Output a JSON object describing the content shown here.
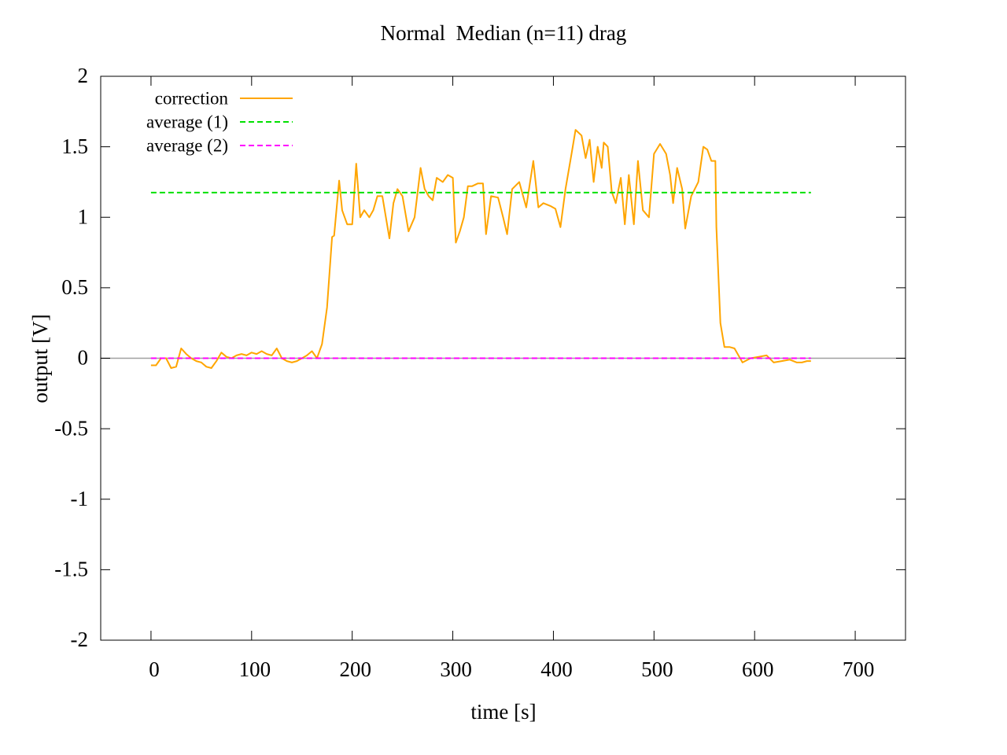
{
  "chart_data": {
    "type": "line",
    "title": "Normal  Median (n=11) drag",
    "xlabel": "time [s]",
    "ylabel": "output [V]",
    "xlim": [
      -50,
      750
    ],
    "xticks": [
      0,
      100,
      200,
      300,
      400,
      500,
      600,
      700
    ],
    "ylim": [
      -2,
      2
    ],
    "yticks": [
      -2,
      -1.5,
      -1,
      -0.5,
      0,
      0.5,
      1,
      1.5,
      2
    ],
    "zeroaxis": true,
    "legend": "top-left",
    "series": [
      {
        "name": "correction",
        "color": "#ffa500",
        "dash": false,
        "x": [
          0,
          5,
          10,
          15,
          20,
          25,
          30,
          35,
          40,
          45,
          50,
          55,
          60,
          65,
          70,
          75,
          80,
          85,
          90,
          95,
          100,
          105,
          110,
          115,
          120,
          125,
          130,
          135,
          140,
          145,
          150,
          155,
          160,
          165,
          170,
          175,
          180,
          182,
          187,
          190,
          195,
          200,
          204,
          208,
          212,
          217,
          221,
          225,
          230,
          237,
          241,
          245,
          250,
          256,
          262,
          268,
          272,
          276,
          280,
          284,
          290,
          295,
          300,
          303,
          307,
          311,
          315,
          319,
          325,
          330,
          333,
          338,
          345,
          350,
          354,
          359,
          366,
          373,
          380,
          385,
          390,
          397,
          402,
          407,
          412,
          418,
          422,
          428,
          432,
          436,
          440,
          444,
          448,
          450,
          454,
          458,
          462,
          467,
          471,
          475,
          480,
          484,
          489,
          495,
          500,
          506,
          512,
          516,
          519,
          523,
          528,
          531,
          537,
          544,
          549,
          553,
          557,
          561,
          562,
          566,
          570,
          575,
          580,
          588,
          596,
          604,
          612,
          619,
          627,
          635,
          642,
          647,
          652,
          656
        ],
        "values": [
          -0.05,
          -0.05,
          0.0,
          0.0,
          -0.07,
          -0.06,
          0.07,
          0.03,
          0.0,
          -0.02,
          -0.03,
          -0.06,
          -0.07,
          -0.02,
          0.04,
          0.01,
          0.0,
          0.02,
          0.03,
          0.02,
          0.04,
          0.03,
          0.05,
          0.03,
          0.02,
          0.07,
          0.0,
          -0.02,
          -0.03,
          -0.02,
          0.0,
          0.02,
          0.05,
          0.0,
          0.1,
          0.36,
          0.86,
          0.87,
          1.26,
          1.05,
          0.95,
          0.95,
          1.38,
          1.0,
          1.05,
          1.0,
          1.05,
          1.15,
          1.15,
          0.85,
          1.1,
          1.2,
          1.15,
          0.9,
          1.0,
          1.35,
          1.2,
          1.15,
          1.12,
          1.28,
          1.25,
          1.3,
          1.28,
          0.82,
          0.9,
          1.0,
          1.22,
          1.22,
          1.24,
          1.24,
          0.88,
          1.15,
          1.14,
          1.0,
          0.88,
          1.2,
          1.25,
          1.07,
          1.4,
          1.07,
          1.1,
          1.08,
          1.06,
          0.93,
          1.2,
          1.45,
          1.62,
          1.58,
          1.42,
          1.55,
          1.25,
          1.5,
          1.35,
          1.53,
          1.5,
          1.18,
          1.1,
          1.28,
          0.95,
          1.3,
          0.95,
          1.4,
          1.05,
          1.0,
          1.45,
          1.52,
          1.45,
          1.3,
          1.1,
          1.35,
          1.2,
          0.92,
          1.15,
          1.25,
          1.5,
          1.48,
          1.4,
          1.4,
          0.93,
          0.25,
          0.08,
          0.08,
          0.07,
          -0.03,
          0.0,
          0.01,
          0.02,
          -0.03,
          -0.02,
          -0.01,
          -0.03,
          -0.03,
          -0.02,
          -0.02
        ]
      },
      {
        "name": "average (1)",
        "color": "#00e000",
        "dash": true,
        "x": [
          0,
          656
        ],
        "values": [
          1.175,
          1.175
        ]
      },
      {
        "name": "average (2)",
        "color": "#ff00ff",
        "dash": true,
        "x": [
          0,
          656
        ],
        "values": [
          0,
          0
        ]
      }
    ]
  }
}
